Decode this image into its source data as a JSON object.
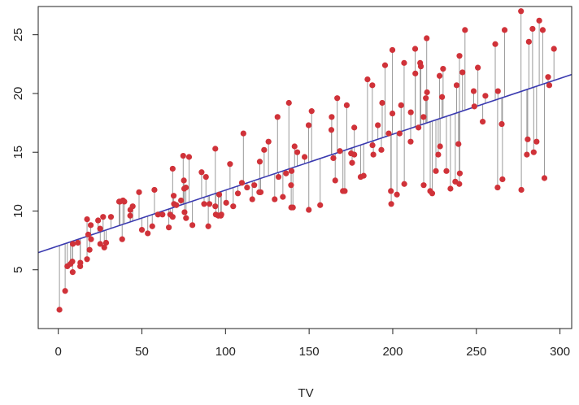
{
  "chart_data": {
    "type": "scatter",
    "title": "",
    "xlabel": "TV",
    "ylabel": "",
    "xlim": [
      -12,
      307
    ],
    "ylim": [
      0,
      27.4
    ],
    "grid": false,
    "x_ticks": [
      0,
      50,
      100,
      150,
      200,
      250,
      300
    ],
    "y_ticks": [
      5,
      10,
      15,
      20,
      25
    ],
    "x_tick_labels": [
      "0",
      "50",
      "100",
      "150",
      "200",
      "250",
      "300"
    ],
    "y_tick_labels": [
      "5",
      "10",
      "15",
      "20",
      "25"
    ],
    "fit_line": {
      "intercept": 7.03,
      "slope": 0.0475
    },
    "colors": {
      "points": "#d03239",
      "residuals": "#9a9a9a",
      "fit_line": "#3a3ab0",
      "axis": "#222222"
    },
    "points": [
      {
        "x": 0.7,
        "y": 1.6
      },
      {
        "x": 4.1,
        "y": 3.2
      },
      {
        "x": 5.4,
        "y": 5.3
      },
      {
        "x": 7.3,
        "y": 5.5
      },
      {
        "x": 8.4,
        "y": 5.7
      },
      {
        "x": 8.6,
        "y": 4.8
      },
      {
        "x": 8.7,
        "y": 7.2
      },
      {
        "x": 11.7,
        "y": 7.3
      },
      {
        "x": 13.1,
        "y": 5.3
      },
      {
        "x": 13.2,
        "y": 5.6
      },
      {
        "x": 17.2,
        "y": 9.3
      },
      {
        "x": 17.2,
        "y": 5.9
      },
      {
        "x": 17.9,
        "y": 8
      },
      {
        "x": 18.7,
        "y": 6.7
      },
      {
        "x": 19.4,
        "y": 8.8
      },
      {
        "x": 19.6,
        "y": 7.6
      },
      {
        "x": 23.8,
        "y": 9.2
      },
      {
        "x": 25,
        "y": 8.5
      },
      {
        "x": 25.1,
        "y": 7.2
      },
      {
        "x": 26.8,
        "y": 9.5
      },
      {
        "x": 27.5,
        "y": 6.9
      },
      {
        "x": 28.6,
        "y": 7.3
      },
      {
        "x": 31.5,
        "y": 9.5
      },
      {
        "x": 36.9,
        "y": 10.8
      },
      {
        "x": 38.2,
        "y": 7.6
      },
      {
        "x": 38.7,
        "y": 10.9
      },
      {
        "x": 39.5,
        "y": 10.8
      },
      {
        "x": 43,
        "y": 9.6
      },
      {
        "x": 43.1,
        "y": 10.1
      },
      {
        "x": 44.5,
        "y": 10.4
      },
      {
        "x": 48.3,
        "y": 11.6
      },
      {
        "x": 50,
        "y": 8.4
      },
      {
        "x": 53.5,
        "y": 8.1
      },
      {
        "x": 56.2,
        "y": 8.7
      },
      {
        "x": 57.5,
        "y": 11.8
      },
      {
        "x": 59.6,
        "y": 9.7
      },
      {
        "x": 62.3,
        "y": 9.7
      },
      {
        "x": 66.1,
        "y": 8.6
      },
      {
        "x": 66.9,
        "y": 9.7
      },
      {
        "x": 68.4,
        "y": 13.6
      },
      {
        "x": 68.4,
        "y": 9.5
      },
      {
        "x": 69,
        "y": 11.3
      },
      {
        "x": 69.2,
        "y": 10.6
      },
      {
        "x": 70.6,
        "y": 10.5
      },
      {
        "x": 73.4,
        "y": 10.9
      },
      {
        "x": 74.7,
        "y": 14.7
      },
      {
        "x": 75.1,
        "y": 12.6
      },
      {
        "x": 75.3,
        "y": 11.9
      },
      {
        "x": 75.5,
        "y": 9.9
      },
      {
        "x": 76.3,
        "y": 12
      },
      {
        "x": 76.4,
        "y": 9.4
      },
      {
        "x": 78.2,
        "y": 14.6
      },
      {
        "x": 80.2,
        "y": 8.8
      },
      {
        "x": 85.7,
        "y": 13.3
      },
      {
        "x": 87.2,
        "y": 10.6
      },
      {
        "x": 88.3,
        "y": 12.9
      },
      {
        "x": 89.7,
        "y": 8.7
      },
      {
        "x": 90.4,
        "y": 10.6
      },
      {
        "x": 93.9,
        "y": 15.3
      },
      {
        "x": 94.2,
        "y": 9.7
      },
      {
        "x": 95.7,
        "y": 9.6
      },
      {
        "x": 96.2,
        "y": 11.4
      },
      {
        "x": 97.2,
        "y": 9.6
      },
      {
        "x": 97.5,
        "y": 9.7
      },
      {
        "x": 100.4,
        "y": 10.7
      },
      {
        "x": 102.7,
        "y": 14
      },
      {
        "x": 104.6,
        "y": 10.4
      },
      {
        "x": 107.4,
        "y": 11.5
      },
      {
        "x": 109.8,
        "y": 12.4
      },
      {
        "x": 110.7,
        "y": 16.6
      },
      {
        "x": 112.9,
        "y": 12
      },
      {
        "x": 116,
        "y": 11
      },
      {
        "x": 117.2,
        "y": 12.2
      },
      {
        "x": 120.2,
        "y": 11.6
      },
      {
        "x": 120.5,
        "y": 14.2
      },
      {
        "x": 121,
        "y": 11.6
      },
      {
        "x": 123.1,
        "y": 15.2
      },
      {
        "x": 125.7,
        "y": 15.9
      },
      {
        "x": 129.4,
        "y": 11
      },
      {
        "x": 131.1,
        "y": 18
      },
      {
        "x": 131.7,
        "y": 12.9
      },
      {
        "x": 134.3,
        "y": 11.2
      },
      {
        "x": 136.2,
        "y": 13.2
      },
      {
        "x": 137.9,
        "y": 19.2
      },
      {
        "x": 139.2,
        "y": 12.2
      },
      {
        "x": 139.3,
        "y": 10.3
      },
      {
        "x": 139.5,
        "y": 13.4
      },
      {
        "x": 140.3,
        "y": 10.3
      },
      {
        "x": 141.3,
        "y": 15.5
      },
      {
        "x": 142.9,
        "y": 15
      },
      {
        "x": 147.3,
        "y": 14.6
      },
      {
        "x": 149.7,
        "y": 17.3
      },
      {
        "x": 149.8,
        "y": 10.1
      },
      {
        "x": 151.5,
        "y": 18.5
      },
      {
        "x": 156.6,
        "y": 10.5
      },
      {
        "x": 163.3,
        "y": 16.9
      },
      {
        "x": 163.5,
        "y": 18
      },
      {
        "x": 164.5,
        "y": 14.5
      },
      {
        "x": 165.6,
        "y": 12.6
      },
      {
        "x": 166.8,
        "y": 19.6
      },
      {
        "x": 168.4,
        "y": 15.1
      },
      {
        "x": 170.2,
        "y": 11.7
      },
      {
        "x": 171.3,
        "y": 11.7
      },
      {
        "x": 172.5,
        "y": 19
      },
      {
        "x": 175.1,
        "y": 14.9
      },
      {
        "x": 175.7,
        "y": 14.1
      },
      {
        "x": 177,
        "y": 14.8
      },
      {
        "x": 177,
        "y": 17.1
      },
      {
        "x": 180.8,
        "y": 12.9
      },
      {
        "x": 182.6,
        "y": 13
      },
      {
        "x": 184.9,
        "y": 21.2
      },
      {
        "x": 187.8,
        "y": 20.7
      },
      {
        "x": 187.9,
        "y": 15.6
      },
      {
        "x": 188.4,
        "y": 14.8
      },
      {
        "x": 191.1,
        "y": 17.3
      },
      {
        "x": 193.2,
        "y": 15.2
      },
      {
        "x": 193.7,
        "y": 19.2
      },
      {
        "x": 195.4,
        "y": 22.4
      },
      {
        "x": 197.6,
        "y": 16.6
      },
      {
        "x": 198.9,
        "y": 11.7
      },
      {
        "x": 199.1,
        "y": 10.6
      },
      {
        "x": 199.8,
        "y": 23.7
      },
      {
        "x": 199.8,
        "y": 18.3
      },
      {
        "x": 202.5,
        "y": 11.4
      },
      {
        "x": 204.1,
        "y": 16.6
      },
      {
        "x": 205,
        "y": 19
      },
      {
        "x": 206.8,
        "y": 22.6
      },
      {
        "x": 206.9,
        "y": 12.3
      },
      {
        "x": 210.7,
        "y": 15.9
      },
      {
        "x": 210.8,
        "y": 18.4
      },
      {
        "x": 213.4,
        "y": 23.8
      },
      {
        "x": 213.5,
        "y": 21.7
      },
      {
        "x": 215.4,
        "y": 17.1
      },
      {
        "x": 216.4,
        "y": 22.6
      },
      {
        "x": 216.8,
        "y": 22.3
      },
      {
        "x": 218.4,
        "y": 18
      },
      {
        "x": 218.5,
        "y": 12.2
      },
      {
        "x": 219.8,
        "y": 19.6
      },
      {
        "x": 220.3,
        "y": 24.7
      },
      {
        "x": 220.5,
        "y": 20.1
      },
      {
        "x": 222.4,
        "y": 11.7
      },
      {
        "x": 223.6,
        "y": 11.5
      },
      {
        "x": 225.8,
        "y": 13.4
      },
      {
        "x": 227.2,
        "y": 14.8
      },
      {
        "x": 228,
        "y": 21.5
      },
      {
        "x": 228.3,
        "y": 15.5
      },
      {
        "x": 229.5,
        "y": 19.7
      },
      {
        "x": 230.1,
        "y": 22.1
      },
      {
        "x": 232.1,
        "y": 13.4
      },
      {
        "x": 234.5,
        "y": 11.9
      },
      {
        "x": 237.4,
        "y": 12.5
      },
      {
        "x": 238.2,
        "y": 20.7
      },
      {
        "x": 239.3,
        "y": 15.7
      },
      {
        "x": 239.8,
        "y": 12.3
      },
      {
        "x": 239.9,
        "y": 23.2
      },
      {
        "x": 240.1,
        "y": 13.2
      },
      {
        "x": 241.7,
        "y": 21.8
      },
      {
        "x": 243.2,
        "y": 25.4
      },
      {
        "x": 248.4,
        "y": 20.2
      },
      {
        "x": 248.8,
        "y": 18.9
      },
      {
        "x": 250.9,
        "y": 22.2
      },
      {
        "x": 253.8,
        "y": 17.6
      },
      {
        "x": 255.4,
        "y": 19.8
      },
      {
        "x": 261.3,
        "y": 24.2
      },
      {
        "x": 262.7,
        "y": 12
      },
      {
        "x": 262.9,
        "y": 20.2
      },
      {
        "x": 265.2,
        "y": 17.4
      },
      {
        "x": 265.6,
        "y": 12.7
      },
      {
        "x": 266.9,
        "y": 25.4
      },
      {
        "x": 276.7,
        "y": 27
      },
      {
        "x": 276.9,
        "y": 11.8
      },
      {
        "x": 280.2,
        "y": 14.8
      },
      {
        "x": 280.7,
        "y": 16.1
      },
      {
        "x": 281.4,
        "y": 24.4
      },
      {
        "x": 283.6,
        "y": 25.5
      },
      {
        "x": 284.3,
        "y": 15
      },
      {
        "x": 286,
        "y": 15.9
      },
      {
        "x": 287.6,
        "y": 26.2
      },
      {
        "x": 289.7,
        "y": 25.4
      },
      {
        "x": 290.7,
        "y": 12.8
      },
      {
        "x": 292.9,
        "y": 21.4
      },
      {
        "x": 293.6,
        "y": 20.7
      },
      {
        "x": 296.4,
        "y": 23.8
      },
      {
        "x": 36.4,
        "y": 10.8
      },
      {
        "x": 93.9,
        "y": 10.4
      }
    ]
  }
}
